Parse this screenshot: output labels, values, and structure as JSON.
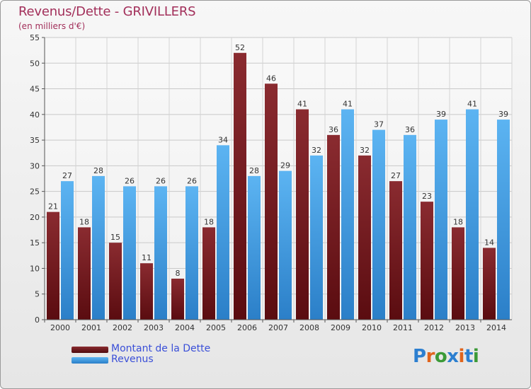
{
  "title": "Revenus/Dette - GRIVILLERS",
  "subtitle": "(en milliers d'€)",
  "logo": {
    "text": "Proxiti",
    "colors": [
      "#2c7fd0",
      "#e0641c",
      "#3b9a37",
      "#2c7fd0",
      "#e0641c",
      "#2c7fd0",
      "#3b9a37"
    ]
  },
  "chart_data": {
    "type": "bar",
    "title": "Revenus/Dette - GRIVILLERS",
    "subtitle": "(en milliers d'€)",
    "categories": [
      "2000",
      "2001",
      "2002",
      "2003",
      "2004",
      "2005",
      "2006",
      "2007",
      "2008",
      "2009",
      "2010",
      "2011",
      "2012",
      "2013",
      "2014"
    ],
    "series": [
      {
        "name": "Montant de la Dette",
        "color": "#6e1a1f",
        "values": [
          21,
          18,
          15,
          11,
          8,
          18,
          52,
          46,
          41,
          36,
          32,
          27,
          23,
          18,
          14
        ]
      },
      {
        "name": "Revenus",
        "color": "#3e9ee4",
        "values": [
          27,
          28,
          26,
          26,
          26,
          34,
          28,
          29,
          32,
          41,
          37,
          36,
          39,
          41,
          39
        ]
      }
    ],
    "ylim": [
      0,
      55
    ],
    "yticks": [
      0,
      5,
      10,
      15,
      20,
      25,
      30,
      35,
      40,
      45,
      50,
      55
    ],
    "grid": true,
    "legend": "bottom-left"
  }
}
